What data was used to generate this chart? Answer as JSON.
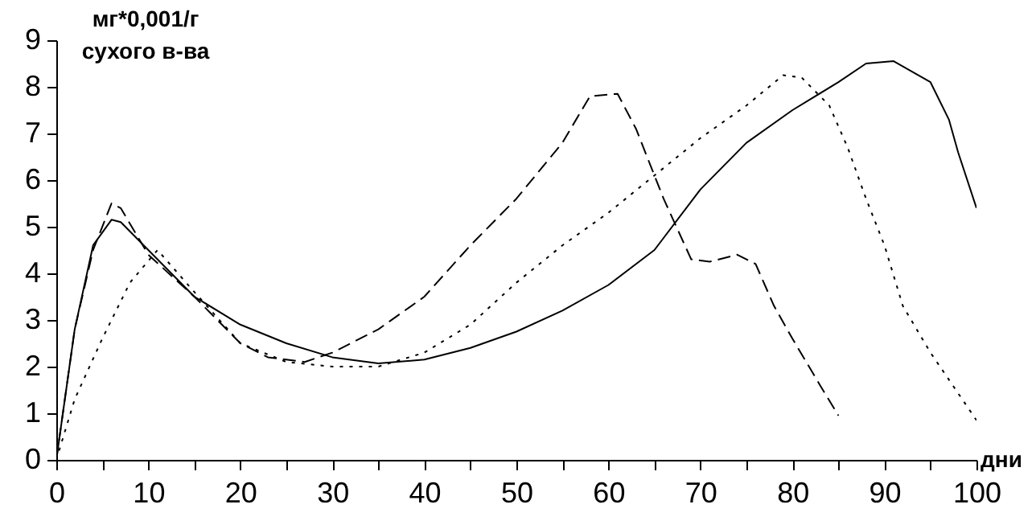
{
  "chart_data": {
    "type": "line",
    "ylabel": "мг*0,001/г\nсухого в-ва",
    "xlabel": "дни",
    "xlim": [
      0,
      100
    ],
    "ylim": [
      0,
      9
    ],
    "xticks": [
      0,
      {
        "value": 5,
        "label": null
      },
      10,
      {
        "value": 15,
        "label": null
      },
      20,
      {
        "value": 25,
        "label": null
      },
      30,
      {
        "value": 35,
        "label": null
      },
      40,
      {
        "value": 45,
        "label": null
      },
      50,
      {
        "value": 55,
        "label": null
      },
      60,
      {
        "value": 65,
        "label": null
      },
      70,
      {
        "value": 75,
        "label": null
      },
      80,
      {
        "value": 85,
        "label": null
      },
      90,
      {
        "value": 95,
        "label": null
      },
      100
    ],
    "yticks": [
      0,
      1,
      2,
      3,
      4,
      5,
      6,
      7,
      8,
      9
    ],
    "grid": false,
    "legend": false,
    "marker": "none",
    "series": [
      {
        "color": "#000000",
        "line_style": "solid",
        "x": [
          0,
          2,
          4,
          6,
          7,
          10,
          15,
          20,
          25,
          30,
          35,
          40,
          45,
          50,
          55,
          60,
          65,
          70,
          75,
          80,
          85,
          88,
          91,
          95,
          97,
          98,
          100
        ],
        "values": [
          0,
          2.8,
          4.6,
          5.15,
          5.1,
          4.5,
          3.5,
          2.9,
          2.5,
          2.2,
          2.07,
          2.15,
          2.4,
          2.75,
          3.2,
          3.75,
          4.5,
          5.8,
          6.8,
          7.5,
          8.1,
          8.5,
          8.55,
          8.1,
          7.3,
          6.6,
          5.4
        ]
      },
      {
        "color": "#000000",
        "line_style": "dashed",
        "x": [
          0,
          2,
          4,
          6,
          7,
          10,
          15,
          18,
          20,
          23,
          27,
          30,
          35,
          40,
          45,
          50,
          55,
          58,
          61,
          63,
          66,
          69,
          71,
          74,
          76,
          78,
          80,
          83,
          85
        ],
        "values": [
          0,
          2.8,
          4.5,
          5.5,
          5.4,
          4.4,
          3.5,
          2.9,
          2.5,
          2.2,
          2.1,
          2.3,
          2.8,
          3.5,
          4.6,
          5.6,
          6.8,
          7.8,
          7.85,
          7.1,
          5.6,
          4.3,
          4.25,
          4.4,
          4.2,
          3.3,
          2.6,
          1.6,
          0.95
        ]
      },
      {
        "color": "#000000",
        "line_style": "dotted",
        "x": [
          0,
          2,
          5,
          8,
          11,
          15,
          20,
          25,
          30,
          35,
          40,
          45,
          50,
          55,
          60,
          65,
          70,
          75,
          79,
          81,
          84,
          86,
          88,
          90,
          92,
          95,
          100
        ],
        "values": [
          0,
          1.3,
          2.6,
          3.8,
          4.5,
          3.6,
          2.5,
          2.1,
          2.0,
          2.0,
          2.3,
          2.9,
          3.8,
          4.6,
          5.3,
          6.1,
          6.9,
          7.6,
          8.25,
          8.2,
          7.6,
          6.7,
          5.6,
          4.6,
          3.3,
          2.3,
          0.85
        ]
      }
    ]
  }
}
